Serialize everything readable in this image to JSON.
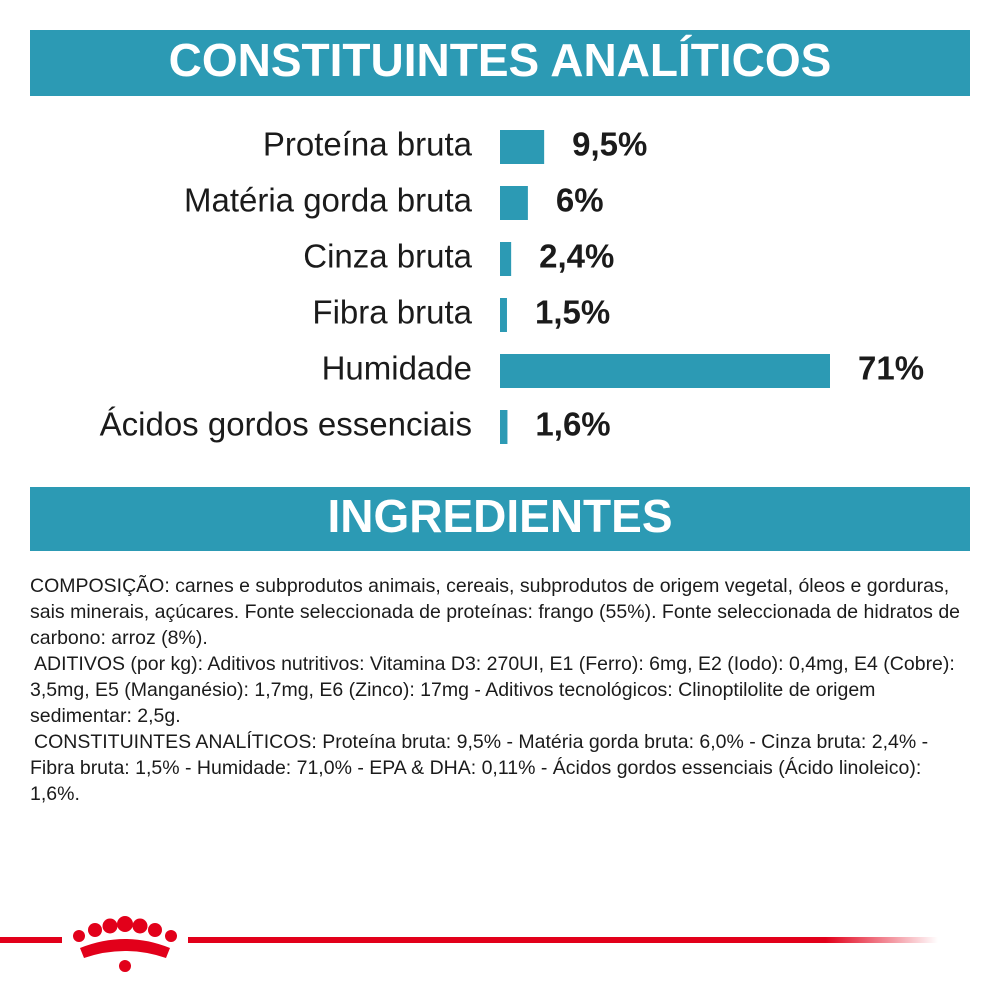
{
  "chart_data": {
    "type": "hbar",
    "title": "CONSTITUINTES ANALÍTICOS",
    "categories": [
      "Proteína bruta",
      "Matéria gorda bruta",
      "Cinza bruta",
      "Fibra bruta",
      "Humidade",
      "Ácidos gordos essenciais"
    ],
    "values": [
      9.5,
      6,
      2.4,
      1.5,
      71,
      1.6
    ],
    "value_labels": [
      "9,5%",
      "6%",
      "2,4%",
      "1,5%",
      "71%",
      "1,6%"
    ],
    "color": "#2c9ab4"
  },
  "ingredients": {
    "title": "INGREDIENTES",
    "paragraphs": [
      "COMPOSIÇÃO: carnes e subprodutos animais, cereais, subprodutos de origem vegetal, óleos e gorduras, sais minerais, açúcares. Fonte seleccionada de proteínas: frango (55%). Fonte seleccionada de hidratos de carbono: arroz (8%).",
      "ADITIVOS (por kg): Aditivos nutritivos: Vitamina D3: 270UI, E1 (Ferro): 6mg, E2 (Iodo): 0,4mg, E4 (Cobre): 3,5mg, E5 (Manganésio): 1,7mg, E6 (Zinco): 17mg - Aditivos tecnológicos: Clinoptilolite de origem sedimentar: 2,5g.",
      "CONSTITUINTES ANALÍTICOS: Proteína bruta: 9,5% - Matéria gorda bruta: 6,0% - Cinza bruta: 2,4% - Fibra bruta: 1,5% - Humidade: 71,0% - EPA & DHA: 0,11% - Ácidos gordos essenciais (Ácido linoleico): 1,6%."
    ]
  }
}
